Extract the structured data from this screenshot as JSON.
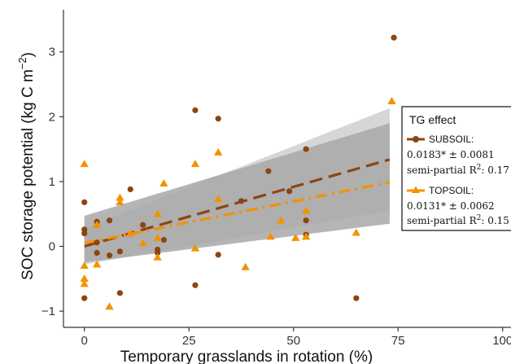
{
  "chart_data": {
    "type": "scatter",
    "xlabel": "Temporary grasslands in rotation (%)",
    "ylabel": "SOC storage potential (kg C m",
    "ylabel_sup": "−2",
    "ylabel_close": ")",
    "xlim": [
      -5,
      102
    ],
    "ylim": [
      -1.25,
      3.65
    ],
    "x_ticks": [
      0,
      25,
      50,
      75,
      100
    ],
    "y_ticks": [
      -1,
      0,
      1,
      2,
      3
    ],
    "grid": false,
    "legend_position": "right",
    "colors": {
      "subsoil": "#8B4513",
      "topsoil": "#F39200",
      "band_outer": "#cfcfcf",
      "band_inner": "#a8a8a8"
    },
    "legend": {
      "title": "TG effect",
      "entries": [
        {
          "label": "SUBSOIL:",
          "stat": "0.0183* ± 0.0081",
          "r2_prefix": "semi-partial R",
          "r2_sup": "2",
          "r2_value": ": 0.17"
        },
        {
          "label": "TOPSOIL:",
          "stat": "0.0131* ±  0.0062",
          "r2_prefix": "semi-partial R",
          "r2_sup": "2",
          "r2_value": ": 0.15"
        }
      ]
    },
    "series": [
      {
        "name": "SUBSOIL",
        "marker": "circle",
        "color": "#8B4513",
        "trend": {
          "x": [
            0,
            73
          ],
          "y": [
            0.0,
            1.34
          ]
        },
        "band": {
          "x": [
            0,
            73
          ],
          "lower": [
            -0.28,
            0.55
          ],
          "upper": [
            0.28,
            2.13
          ]
        },
        "points": [
          [
            0,
            0.68
          ],
          [
            0,
            0.26
          ],
          [
            0,
            0.2
          ],
          [
            0,
            -0.8
          ],
          [
            3,
            0.38
          ],
          [
            3,
            0.06
          ],
          [
            3,
            -0.1
          ],
          [
            6,
            0.4
          ],
          [
            6,
            -0.14
          ],
          [
            8.5,
            -0.08
          ],
          [
            8.5,
            -0.72
          ],
          [
            11,
            0.88
          ],
          [
            14,
            0.33
          ],
          [
            17.5,
            -0.05
          ],
          [
            17.5,
            -0.1
          ],
          [
            19,
            0.1
          ],
          [
            26.5,
            2.1
          ],
          [
            26.5,
            -0.6
          ],
          [
            32,
            1.97
          ],
          [
            32,
            -0.13
          ],
          [
            37.5,
            0.7
          ],
          [
            44,
            1.16
          ],
          [
            49,
            0.85
          ],
          [
            53,
            1.5
          ],
          [
            53,
            0.18
          ],
          [
            53,
            0.4
          ],
          [
            65,
            -0.8
          ],
          [
            74,
            3.22
          ]
        ]
      },
      {
        "name": "TOPSOIL",
        "marker": "triangle",
        "color": "#F39200",
        "trend": {
          "x": [
            0,
            73
          ],
          "y": [
            0.05,
            0.99
          ]
        },
        "band": {
          "x": [
            0,
            73
          ],
          "lower": [
            -0.25,
            0.35
          ],
          "upper": [
            0.47,
            1.9
          ]
        },
        "points": [
          [
            0,
            1.27
          ],
          [
            0,
            -0.3
          ],
          [
            0,
            -0.5
          ],
          [
            0,
            -0.58
          ],
          [
            3,
            0.33
          ],
          [
            3,
            -0.28
          ],
          [
            6,
            -0.93
          ],
          [
            8.5,
            0.75
          ],
          [
            8.5,
            0.68
          ],
          [
            11,
            0.2
          ],
          [
            14,
            0.05
          ],
          [
            17.5,
            0.5
          ],
          [
            17.5,
            0.13
          ],
          [
            17.5,
            -0.17
          ],
          [
            19,
            0.97
          ],
          [
            26.5,
            1.27
          ],
          [
            26.5,
            -0.03
          ],
          [
            32,
            1.45
          ],
          [
            32,
            0.73
          ],
          [
            38.5,
            -0.32
          ],
          [
            44.5,
            0.15
          ],
          [
            47,
            0.4
          ],
          [
            50.5,
            0.13
          ],
          [
            53,
            0.55
          ],
          [
            53,
            0.15
          ],
          [
            65,
            0.21
          ],
          [
            73.5,
            2.24
          ]
        ]
      }
    ]
  }
}
